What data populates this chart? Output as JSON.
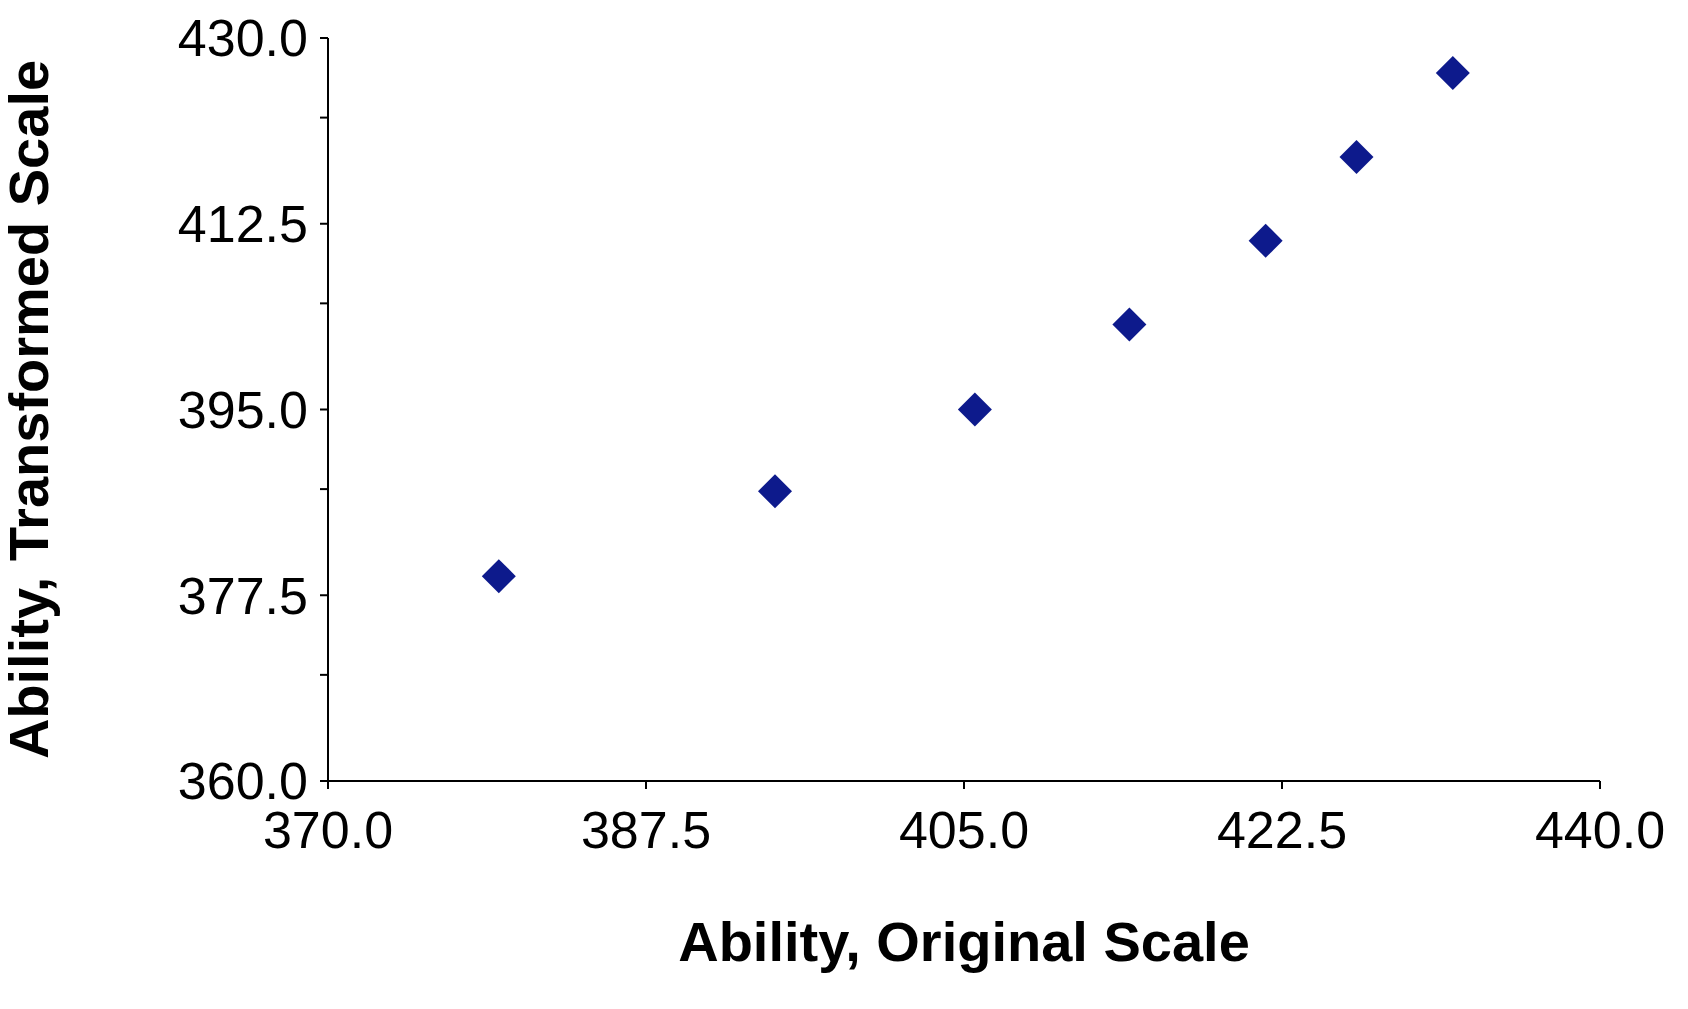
{
  "chart_data": {
    "type": "scatter",
    "xlabel": "Ability, Original Scale",
    "ylabel": "Ability, Transformed Scale",
    "x": [
      379.4,
      394.6,
      405.6,
      414.1,
      421.6,
      426.6,
      431.9
    ],
    "series": [
      {
        "color": "#0d1a8c",
        "values": [
          379.3,
          387.3,
          395.0,
          403.0,
          410.9,
          418.8,
          426.7
        ]
      }
    ],
    "xlim": [
      370,
      440
    ],
    "xticks": [
      {
        "value": 370,
        "label": "370.0"
      },
      {
        "value": 387.5,
        "label": "387.5"
      },
      {
        "value": 405,
        "label": "405.0"
      },
      {
        "value": 422.5,
        "label": "422.5"
      },
      {
        "value": 440,
        "label": "440.0"
      }
    ],
    "ylim": [
      360,
      430
    ],
    "yticks": [
      {
        "value": 360,
        "label": "360.0"
      },
      {
        "value": 370,
        "label": null
      },
      {
        "value": 377.5,
        "label": "377.5"
      },
      {
        "value": 387.5,
        "label": null
      },
      {
        "value": 395,
        "label": "395.0"
      },
      {
        "value": 405,
        "label": null
      },
      {
        "value": 412.5,
        "label": "412.5"
      },
      {
        "value": 422.5,
        "label": null
      },
      {
        "value": 430,
        "label": "430.0"
      }
    ],
    "grid": false,
    "legend": false,
    "marker": "diamond"
  }
}
